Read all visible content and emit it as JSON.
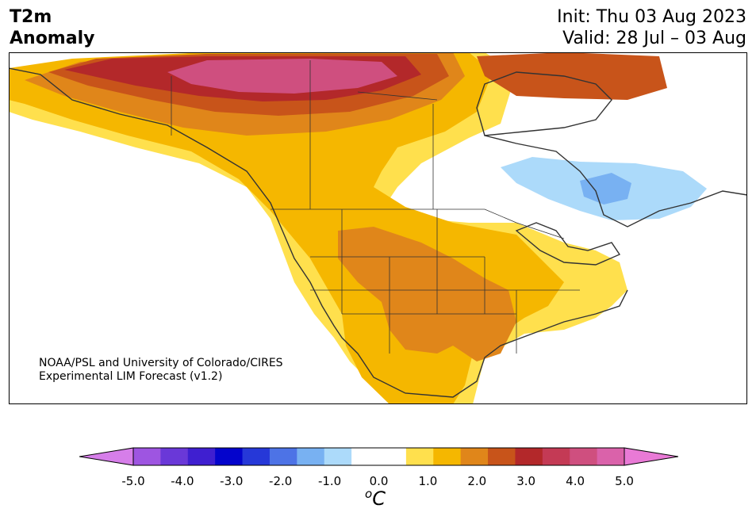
{
  "header": {
    "title_line1": "T2m",
    "title_line2": "Anomaly",
    "init_text": "Init: Thu 03 Aug 2023",
    "valid_text": "Valid: 28 Jul – 03 Aug"
  },
  "credit": {
    "line1": "NOAA/PSL and University of Colorado/CIRES",
    "line2": "Experimental LIM Forecast (v1.2)"
  },
  "colorbar": {
    "unit_super": "o",
    "unit_base": "C",
    "ticks": [
      "-5.0",
      "-4.0",
      "-3.0",
      "-2.0",
      "-1.0",
      "0.0",
      "1.0",
      "2.0",
      "3.0",
      "4.0",
      "5.0"
    ],
    "tick_values": [
      -5,
      -4,
      -3,
      -2,
      -1,
      0,
      1,
      2,
      3,
      4,
      5
    ],
    "range": [
      -5.5,
      5.5
    ],
    "bin_size": 0.5,
    "colors": [
      "#d67ee9",
      "#9e55e1",
      "#6a38d8",
      "#3f1fd0",
      "#0404cc",
      "#2638d8",
      "#4d73e6",
      "#78b1f2",
      "#acdafa",
      "#ffffff",
      "#ffffff",
      "#ffe04d",
      "#f5b700",
      "#e0861a",
      "#c8541a",
      "#b3282a",
      "#c43a55",
      "#cf4f7f",
      "#da62aa",
      "#e97ad6"
    ]
  },
  "map": {
    "region": "North America",
    "land_color": "#ffffff",
    "border_color": "#333333"
  }
}
